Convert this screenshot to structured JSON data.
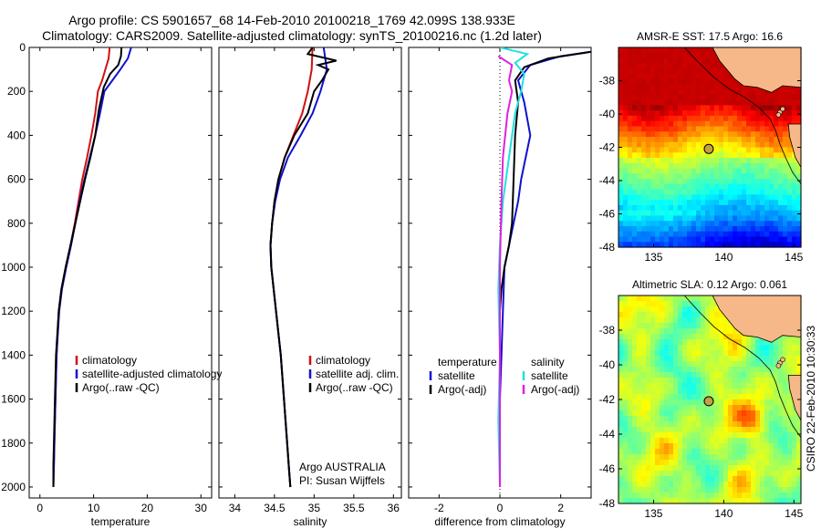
{
  "header": {
    "line1": "Argo profile: CS 5901657_68 14-Feb-2010 20100218_1769 42.099S 138.933E",
    "line2": "Climatology: CARS2009. Satellite-adjusted climatology: synTS_20100216.nc (1.2d later)"
  },
  "side_label": "CSIRO 22-Feb-2010 10:30:33",
  "colors": {
    "climatology": "#d01010",
    "satellite": "#1010d0",
    "argo": "#000000",
    "sal_satellite": "#20e0e0",
    "sal_argo": "#e020e0",
    "land": "#f6b888",
    "float_marker": "#c8a040"
  },
  "chart_data": [
    {
      "type": "line",
      "xlabel": "temperature",
      "xlim": [
        -2,
        32
      ],
      "xticks": [
        0,
        10,
        20,
        30
      ],
      "ylim": [
        0,
        2050
      ],
      "yticks": [
        0,
        200,
        400,
        600,
        800,
        1000,
        1200,
        1400,
        1600,
        1800,
        2000
      ],
      "y_reversed": true,
      "legend": [
        "climatology",
        "satellite-adjusted climatology",
        "Argo(..raw -QC)"
      ],
      "series": [
        {
          "name": "climatology",
          "color_key": "climatology",
          "x": [
            13.0,
            12.8,
            12.2,
            11.6,
            10.8,
            10.3,
            9.6,
            8.8,
            7.9,
            7.2,
            6.5,
            5.7,
            4.8,
            4.0,
            3.5,
            3.1,
            2.9,
            2.7,
            2.6,
            2.5
          ],
          "y": [
            0,
            50,
            100,
            150,
            200,
            300,
            400,
            500,
            600,
            700,
            800,
            900,
            1000,
            1100,
            1200,
            1400,
            1600,
            1800,
            1900,
            2000
          ]
        },
        {
          "name": "satellite-adjusted climatology",
          "color_key": "satellite",
          "x": [
            17.0,
            16.4,
            15.0,
            13.5,
            12.0,
            11.2,
            10.3,
            9.3,
            8.3,
            7.4,
            6.6,
            5.8,
            4.9,
            4.1,
            3.6,
            3.1,
            2.9,
            2.7,
            2.6,
            2.5
          ],
          "y": [
            0,
            50,
            100,
            150,
            200,
            300,
            400,
            500,
            600,
            700,
            800,
            900,
            1000,
            1100,
            1200,
            1400,
            1600,
            1800,
            1900,
            2000
          ]
        },
        {
          "name": "Argo(..raw -QC)",
          "color_key": "argo",
          "x": [
            15.2,
            15.1,
            14.6,
            13.1,
            11.9,
            11.0,
            10.3,
            9.4,
            8.4,
            7.5,
            6.6,
            5.7,
            4.8,
            4.0,
            3.5,
            3.0,
            2.8,
            2.6,
            2.5,
            2.5
          ],
          "y": [
            0,
            40,
            80,
            120,
            180,
            280,
            400,
            500,
            600,
            700,
            800,
            900,
            1000,
            1100,
            1200,
            1400,
            1600,
            1800,
            1900,
            2000
          ]
        }
      ]
    },
    {
      "type": "line",
      "xlabel": "salinity",
      "xlim": [
        33.8,
        36.1
      ],
      "xticks": [
        34,
        34.5,
        35,
        35.5,
        36
      ],
      "xtick_labels": [
        "34",
        "34.5",
        "35",
        "35.5",
        "36"
      ],
      "ylim": [
        0,
        2050
      ],
      "y_reversed": true,
      "legend": [
        "climatology",
        "satellite adj. clim.",
        "Argo(..raw -QC)"
      ],
      "annotations": [
        "Argo AUSTRALIA",
        "PI: Susan Wijffels"
      ],
      "series": [
        {
          "name": "climatology",
          "color_key": "climatology",
          "x": [
            34.98,
            34.97,
            34.92,
            34.85,
            34.74,
            34.63,
            34.55,
            34.5,
            34.47,
            34.45,
            34.46,
            34.52,
            34.58,
            34.62,
            34.66,
            34.68,
            34.7
          ],
          "y": [
            0,
            100,
            200,
            300,
            400,
            500,
            600,
            700,
            800,
            900,
            1000,
            1200,
            1400,
            1600,
            1800,
            1900,
            2000
          ]
        },
        {
          "name": "satellite adj. clim.",
          "color_key": "satellite",
          "x": [
            35.12,
            35.16,
            35.08,
            34.98,
            34.83,
            34.67,
            34.57,
            34.51,
            34.47,
            34.45,
            34.46,
            34.52,
            34.58,
            34.62,
            34.66,
            34.68,
            34.7
          ],
          "y": [
            0,
            100,
            200,
            300,
            400,
            500,
            600,
            700,
            800,
            900,
            1000,
            1200,
            1400,
            1600,
            1800,
            1900,
            2000
          ]
        },
        {
          "name": "Argo(..raw -QC)",
          "color_key": "argo",
          "x": [
            34.98,
            34.92,
            35.28,
            35.05,
            35.18,
            35.1,
            35.0,
            34.92,
            34.75,
            34.63,
            34.55,
            34.5,
            34.47,
            34.45,
            34.46,
            34.52,
            34.58,
            34.62,
            34.66,
            34.68,
            34.7
          ],
          "y": [
            0,
            30,
            60,
            80,
            100,
            150,
            200,
            300,
            400,
            500,
            600,
            700,
            800,
            900,
            1000,
            1200,
            1400,
            1600,
            1800,
            1900,
            2000
          ]
        }
      ]
    },
    {
      "type": "line",
      "xlabel": "difference from climatology",
      "xlim": [
        -3,
        3
      ],
      "xticks": [
        -2,
        0,
        2
      ],
      "ylim": [
        0,
        2050
      ],
      "y_reversed": true,
      "zero_line": "dotted",
      "legend_groups": [
        {
          "title": "temperature",
          "items": [
            "satellite",
            "Argo(-adj)"
          ]
        },
        {
          "title": "salinity",
          "items": [
            "satellite",
            "Argo(-adj)"
          ]
        }
      ],
      "series": [
        {
          "name": "temperature satellite",
          "color_key": "satellite",
          "x": [
            3.0,
            2.0,
            1.0,
            0.6,
            0.8,
            1.0,
            0.85,
            0.7,
            0.6,
            0.45,
            0.3,
            0.15,
            0.1,
            0.05,
            0.0,
            0.0,
            0.0
          ],
          "y": [
            20,
            40,
            80,
            150,
            250,
            400,
            500,
            600,
            700,
            800,
            900,
            1000,
            1200,
            1400,
            1600,
            1800,
            2000
          ]
        },
        {
          "name": "temperature Argo(-adj)",
          "color_key": "argo",
          "x": [
            3.0,
            1.6,
            0.8,
            0.5,
            0.6,
            0.5,
            0.45,
            0.4,
            0.3,
            0.15,
            0.05,
            0.0,
            0.0,
            0.0,
            0.0
          ],
          "y": [
            20,
            50,
            90,
            150,
            250,
            400,
            600,
            800,
            900,
            1000,
            1100,
            1200,
            1400,
            1700,
            2000
          ]
        },
        {
          "name": "salinity satellite",
          "color_key": "sal_satellite",
          "x": [
            0.0,
            0.9,
            0.5,
            0.8,
            0.7,
            0.5,
            0.3,
            0.1,
            0.0,
            -0.05,
            0.0,
            -0.05,
            0.0
          ],
          "y": [
            0,
            30,
            70,
            120,
            200,
            300,
            500,
            700,
            900,
            1100,
            1400,
            1700,
            2000
          ]
        },
        {
          "name": "salinity Argo(-adj)",
          "color_key": "sal_argo",
          "x": [
            -0.05,
            0.4,
            0.3,
            0.4,
            0.25,
            0.1,
            0.05,
            0.0,
            0.0,
            0.0
          ],
          "y": [
            40,
            80,
            150,
            200,
            300,
            500,
            700,
            1000,
            1500,
            2000
          ]
        }
      ]
    },
    {
      "type": "heatmap",
      "title": "AMSR-E SST: 17.5 Argo: 16.6",
      "xlim": [
        132.5,
        145.5
      ],
      "xticks": [
        135,
        140,
        145
      ],
      "ylim": [
        -48,
        -36
      ],
      "yticks": [
        -38,
        -40,
        -42,
        -44,
        -46,
        -48
      ],
      "ytick_labels": [
        "-38",
        "-40",
        "-42",
        "-44",
        "-46",
        "-48"
      ],
      "colormap": "jet",
      "argo_position": {
        "lon": 138.933,
        "lat": -42.099
      }
    },
    {
      "type": "heatmap",
      "title": "Altimetric SLA: 0.12 Argo: 0.061",
      "xlim": [
        132.5,
        145.5
      ],
      "xticks": [
        135,
        140,
        145
      ],
      "ylim": [
        -48,
        -36
      ],
      "yticks": [
        -38,
        -40,
        -42,
        -44,
        -46,
        -48
      ],
      "ytick_labels": [
        "-38",
        "-40",
        "-42",
        "-44",
        "-46",
        "-48"
      ],
      "colormap": "jet",
      "argo_position": {
        "lon": 138.933,
        "lat": -42.099
      }
    }
  ]
}
